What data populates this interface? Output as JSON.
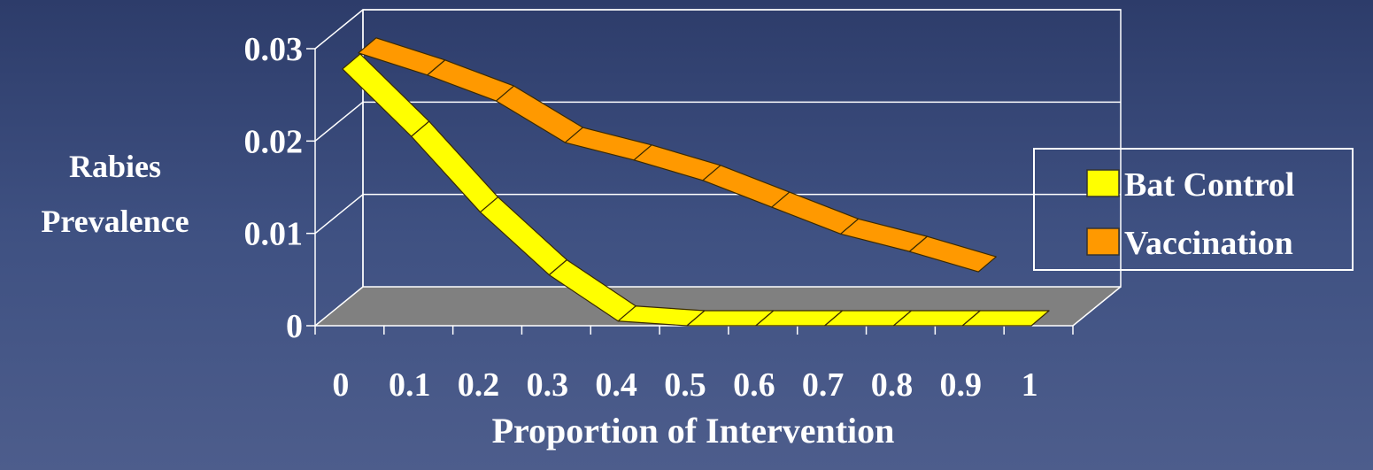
{
  "chart_data": {
    "type": "line",
    "subtype": "3d-ribbon",
    "title": "",
    "xlabel": "Proportion of Intervention",
    "ylabel_lines": [
      "Rabies",
      "Prevalence"
    ],
    "x": [
      0,
      0.1,
      0.2,
      0.3,
      0.4,
      0.5,
      0.6,
      0.7,
      0.8,
      0.9,
      1
    ],
    "x_tick_labels": [
      "0",
      "0.1",
      "0.2",
      "0.3",
      "0.4",
      "0.5",
      "0.6",
      "0.7",
      "0.8",
      "0.9",
      "1"
    ],
    "y_tick_labels": [
      "0",
      "0.01",
      "0.02",
      "0.03"
    ],
    "y_ticks": [
      0,
      0.01,
      0.02,
      0.03
    ],
    "ylim": [
      0,
      0.03
    ],
    "grid": true,
    "legend_position": "right",
    "series": [
      {
        "name": "Bat Control",
        "color": "#ffff00",
        "values": [
          0.0278,
          0.0205,
          0.0123,
          0.0055,
          0.0005,
          0,
          0,
          0,
          0,
          0,
          0
        ]
      },
      {
        "name": "Vaccination",
        "color": "#ff9900",
        "values": [
          0.0281,
          0.0257,
          0.0229,
          0.0184,
          0.0165,
          0.0143,
          0.0114,
          0.0085,
          0.0066,
          0.0044,
          null
        ]
      }
    ],
    "colors": {
      "floor": "#808080",
      "grid": "#ffffff",
      "legend_border": "#ffffff",
      "label": "#ffffff"
    }
  }
}
